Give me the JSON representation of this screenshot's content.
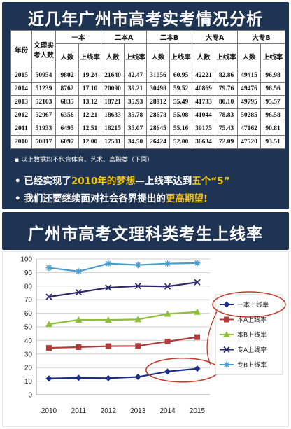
{
  "header": {
    "title": "近几年广州市高考实考情况分析"
  },
  "table": {
    "year_label": "年份",
    "total_label": "文理实考人数",
    "groups": [
      "一本",
      "二本A",
      "二本B",
      "大专A",
      "大专B"
    ],
    "sub_headers": [
      "人数",
      "上线率"
    ],
    "rows": [
      {
        "year": "2015",
        "total": "50954",
        "cells": [
          "9802",
          "19.24",
          "21640",
          "42.47",
          "31056",
          "60.95",
          "42221",
          "82.86",
          "49415",
          "96.98"
        ]
      },
      {
        "year": "2014",
        "total": "51239",
        "cells": [
          "8762",
          "17.10",
          "20090",
          "39.21",
          "30498",
          "59.52",
          "40869",
          "79.76",
          "49476",
          "96.56"
        ]
      },
      {
        "year": "2013",
        "total": "52103",
        "cells": [
          "6835",
          "13.12",
          "18721",
          "35.93",
          "28912",
          "55.49",
          "41733",
          "80.10",
          "49795",
          "95.57"
        ]
      },
      {
        "year": "2012",
        "total": "52067",
        "cells": [
          "6356",
          "12.21",
          "18633",
          "35.78",
          "28678",
          "55.08",
          "41044",
          "78.83",
          "50285",
          "96.58"
        ]
      },
      {
        "year": "2011",
        "total": "51933",
        "cells": [
          "6495",
          "12.51",
          "18215",
          "35.07",
          "28645",
          "55.16",
          "39175",
          "75.43",
          "47162",
          "90.81"
        ]
      },
      {
        "year": "2010",
        "total": "50817",
        "cells": [
          "6097",
          "12.00",
          "17531",
          "34.50",
          "26424",
          "52.00",
          "36634",
          "72.09",
          "47520",
          "93.51"
        ]
      }
    ],
    "note": "以上数据均不包含体育、艺术、高职类（下同）"
  },
  "bullets": {
    "b1_a": "已经实现了",
    "b1_hl": "2010年的梦想",
    "b1_b": "—上线率达到",
    "b1_hl2": "五个“5”",
    "b2_a": "我们还要继续面对社会各界提出的",
    "b2_hl": "更高期望!"
  },
  "chart_header": {
    "title": "广州市高考文理科类考生上线率"
  },
  "chart_data": {
    "type": "line",
    "x": [
      "2010",
      "2011",
      "2012",
      "2013",
      "2014",
      "2015"
    ],
    "ylim": [
      0,
      100
    ],
    "yticks": [
      "0",
      "10",
      "20",
      "30",
      "40",
      "50",
      "60",
      "70",
      "80",
      "90",
      "100"
    ],
    "grid": true,
    "legend": "right",
    "series": [
      {
        "name": "一本上线率",
        "color": "#1b2e8a",
        "marker": "diamond",
        "values": [
          12.0,
          12.51,
          12.21,
          13.12,
          17.1,
          19.24
        ]
      },
      {
        "name": "本A上线率",
        "color": "#b33a3a",
        "marker": "square",
        "values": [
          34.5,
          35.07,
          35.78,
          35.93,
          39.21,
          42.47
        ]
      },
      {
        "name": "本B上线率",
        "color": "#8fbf3a",
        "marker": "triangle",
        "values": [
          52.0,
          55.16,
          55.08,
          55.49,
          59.52,
          60.95
        ]
      },
      {
        "name": "专A上线率",
        "color": "#2e2a6a",
        "marker": "x",
        "values": [
          72.09,
          75.43,
          78.83,
          80.1,
          79.76,
          82.86
        ]
      },
      {
        "name": "专B上线率",
        "color": "#4a9ccc",
        "marker": "star",
        "values": [
          93.51,
          90.81,
          96.58,
          95.57,
          96.56,
          96.98
        ]
      }
    ]
  },
  "colors": {
    "panel": "#1f3353",
    "highlight": "#f2c511",
    "red": "#c01820",
    "blue": "#1b3f8f",
    "annotation": "#c0392b"
  }
}
